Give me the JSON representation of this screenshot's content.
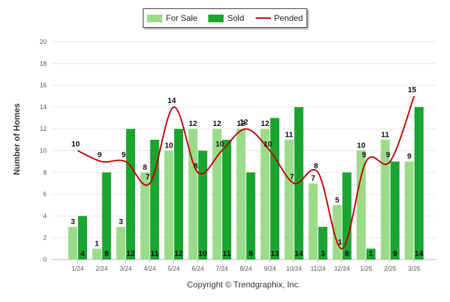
{
  "chart_data": {
    "type": "bar",
    "categories": [
      "1/24",
      "2/24",
      "3/24",
      "4/24",
      "5/24",
      "6/24",
      "7/24",
      "8/24",
      "9/24",
      "10/24",
      "11/24",
      "12/24",
      "1/25",
      "2/25",
      "3/25"
    ],
    "series": [
      {
        "name": "For Sale",
        "type": "bar",
        "color": "#9bdc8a",
        "values": [
          3,
          1,
          3,
          8,
          10,
          12,
          12,
          12,
          12,
          11,
          7,
          5,
          10,
          11,
          9
        ]
      },
      {
        "name": "Sold",
        "type": "bar",
        "color": "#1aa531",
        "values": [
          4,
          8,
          12,
          11,
          12,
          10,
          11,
          8,
          13,
          14,
          3,
          8,
          1,
          9,
          14
        ]
      },
      {
        "name": "Pended",
        "type": "line",
        "color": "#c00000",
        "values": [
          10,
          9,
          9,
          7,
          14,
          8,
          10,
          12,
          10,
          7,
          8,
          1,
          9,
          9,
          15
        ]
      }
    ],
    "title": "",
    "xlabel": "",
    "ylabel": "Number of Homes",
    "ylim": [
      0,
      20
    ],
    "yticks": [
      0,
      2,
      4,
      6,
      8,
      10,
      12,
      14,
      16,
      18,
      20
    ],
    "grid": true,
    "legend_position": "top-center"
  },
  "copyright": "Copyright © Trendgraphix, Inc."
}
